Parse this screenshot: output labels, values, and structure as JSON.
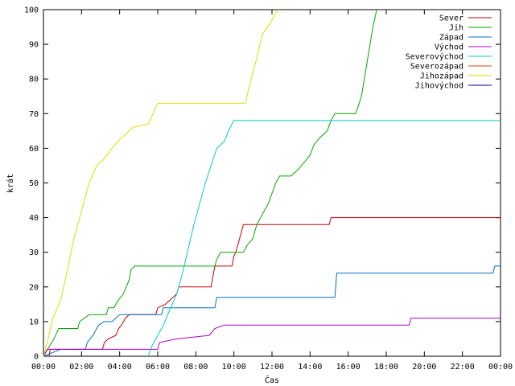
{
  "chart_data": {
    "type": "line",
    "title": "",
    "xlabel": "Čas",
    "ylabel": "krát",
    "xlim": [
      0,
      24
    ],
    "ylim": [
      0,
      100
    ],
    "grid": false,
    "legend_position": "top-right",
    "x_tick_values": [
      0,
      2,
      4,
      6,
      8,
      10,
      12,
      14,
      16,
      18,
      20,
      22,
      24
    ],
    "x_ticks": [
      "00:00",
      "02:00",
      "04:00",
      "06:00",
      "08:00",
      "10:00",
      "12:00",
      "14:00",
      "16:00",
      "18:00",
      "20:00",
      "22:00",
      "00:00"
    ],
    "y_ticks": [
      0,
      10,
      20,
      30,
      40,
      50,
      60,
      70,
      80,
      90,
      100
    ],
    "series": [
      {
        "name": "Sever",
        "color": "#cc0000",
        "points": [
          [
            0.3,
            0
          ],
          [
            0.35,
            2
          ],
          [
            3.1,
            2
          ],
          [
            3.2,
            4
          ],
          [
            3.4,
            5
          ],
          [
            3.8,
            6
          ],
          [
            3.95,
            8
          ],
          [
            4.1,
            9
          ],
          [
            4.3,
            11
          ],
          [
            4.5,
            12
          ],
          [
            4.8,
            12
          ],
          [
            5.9,
            12
          ],
          [
            6.0,
            14
          ],
          [
            6.4,
            15
          ],
          [
            6.8,
            17
          ],
          [
            7.0,
            18
          ],
          [
            7.1,
            20
          ],
          [
            7.5,
            20
          ],
          [
            8.8,
            20
          ],
          [
            8.9,
            23
          ],
          [
            9.0,
            26
          ],
          [
            9.9,
            26
          ],
          [
            10.0,
            29
          ],
          [
            10.1,
            30
          ],
          [
            10.3,
            34
          ],
          [
            10.5,
            38
          ],
          [
            12.0,
            38
          ],
          [
            15.0,
            38
          ],
          [
            15.1,
            40
          ],
          [
            24,
            40
          ]
        ]
      },
      {
        "name": "Jih",
        "color": "#00aa00",
        "points": [
          [
            0,
            0
          ],
          [
            0.55,
            5
          ],
          [
            0.8,
            8
          ],
          [
            1.8,
            8
          ],
          [
            1.9,
            10
          ],
          [
            2.4,
            12
          ],
          [
            3.3,
            12
          ],
          [
            3.4,
            14
          ],
          [
            3.7,
            14
          ],
          [
            3.9,
            16
          ],
          [
            4.2,
            18
          ],
          [
            4.35,
            20
          ],
          [
            4.5,
            22
          ],
          [
            4.6,
            25
          ],
          [
            4.8,
            26
          ],
          [
            9.0,
            26
          ],
          [
            9.1,
            28
          ],
          [
            9.3,
            30
          ],
          [
            10.5,
            30
          ],
          [
            10.7,
            32
          ],
          [
            11.0,
            34
          ],
          [
            11.2,
            38
          ],
          [
            11.4,
            40
          ],
          [
            11.6,
            42
          ],
          [
            11.8,
            44
          ],
          [
            12.0,
            47
          ],
          [
            12.2,
            50
          ],
          [
            12.4,
            52
          ],
          [
            13.0,
            52
          ],
          [
            13.4,
            54
          ],
          [
            13.7,
            56
          ],
          [
            14.0,
            58
          ],
          [
            14.2,
            61
          ],
          [
            14.5,
            63
          ],
          [
            14.9,
            65
          ],
          [
            15.1,
            68
          ],
          [
            15.3,
            70
          ],
          [
            16.4,
            70
          ],
          [
            16.7,
            75
          ],
          [
            17.0,
            85
          ],
          [
            17.3,
            95
          ],
          [
            17.5,
            100
          ]
        ]
      },
      {
        "name": "Západ",
        "color": "#0070c0",
        "points": [
          [
            0,
            0
          ],
          [
            0.9,
            2
          ],
          [
            2.2,
            2
          ],
          [
            2.3,
            4
          ],
          [
            2.6,
            6
          ],
          [
            2.9,
            9
          ],
          [
            3.2,
            10
          ],
          [
            3.6,
            10
          ],
          [
            4.0,
            12
          ],
          [
            6.2,
            12
          ],
          [
            6.3,
            14
          ],
          [
            9.0,
            14
          ],
          [
            9.1,
            17
          ],
          [
            15.3,
            17
          ],
          [
            15.4,
            24
          ],
          [
            23.6,
            24
          ],
          [
            23.7,
            26
          ],
          [
            24,
            26
          ]
        ]
      },
      {
        "name": "Východ",
        "color": "#aa00cc",
        "points": [
          [
            0,
            0
          ],
          [
            0.2,
            2
          ],
          [
            6.0,
            2
          ],
          [
            6.1,
            4
          ],
          [
            7.0,
            5
          ],
          [
            8.7,
            6
          ],
          [
            9.0,
            8
          ],
          [
            9.5,
            9
          ],
          [
            19.2,
            9
          ],
          [
            19.3,
            11
          ],
          [
            24,
            11
          ]
        ]
      },
      {
        "name": "Severovýchod",
        "color": "#00cccc",
        "points": [
          [
            5.5,
            0
          ],
          [
            5.7,
            3
          ],
          [
            6.0,
            6
          ],
          [
            6.3,
            9
          ],
          [
            6.6,
            13
          ],
          [
            7.0,
            18
          ],
          [
            7.3,
            24
          ],
          [
            7.6,
            31
          ],
          [
            7.9,
            38
          ],
          [
            8.2,
            44
          ],
          [
            8.5,
            50
          ],
          [
            8.8,
            55
          ],
          [
            9.1,
            60
          ],
          [
            9.5,
            62
          ],
          [
            9.8,
            66
          ],
          [
            10.0,
            68
          ],
          [
            24,
            68
          ]
        ]
      },
      {
        "name": "Severozápad",
        "color": "#cc4400",
        "points": []
      },
      {
        "name": "Jihozápad",
        "color": "#dddd00",
        "points": [
          [
            0,
            0
          ],
          [
            0.2,
            4
          ],
          [
            0.5,
            11
          ],
          [
            0.9,
            16
          ],
          [
            1.3,
            26
          ],
          [
            1.6,
            34
          ],
          [
            2.0,
            42
          ],
          [
            2.4,
            50
          ],
          [
            2.8,
            55
          ],
          [
            3.2,
            57
          ],
          [
            3.6,
            60
          ],
          [
            3.9,
            62
          ],
          [
            4.3,
            64
          ],
          [
            4.7,
            66
          ],
          [
            5.5,
            67
          ],
          [
            6.0,
            73
          ],
          [
            10.6,
            73
          ],
          [
            10.9,
            80
          ],
          [
            11.2,
            86
          ],
          [
            11.5,
            93
          ],
          [
            11.9,
            96
          ],
          [
            12.3,
            100
          ]
        ]
      },
      {
        "name": "Jihovýchod",
        "color": "#000090",
        "points": []
      }
    ]
  }
}
